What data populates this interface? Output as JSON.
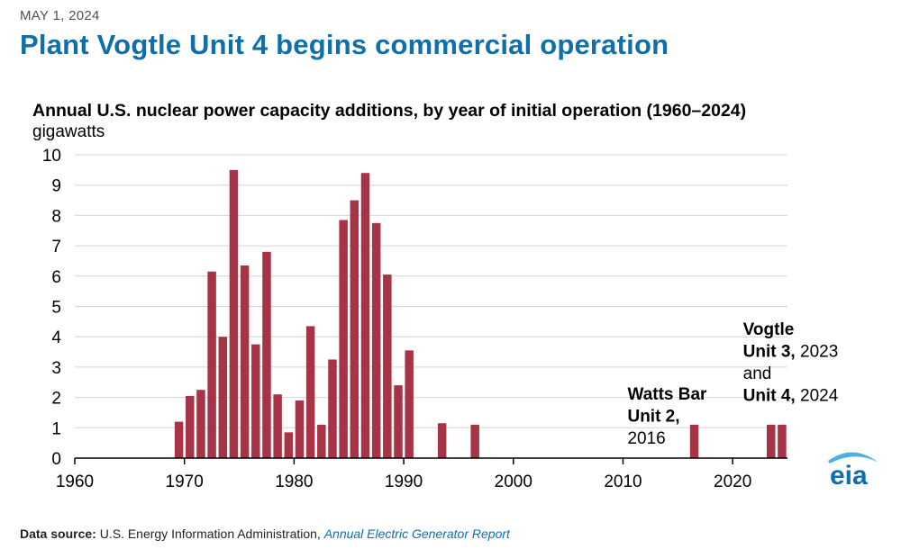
{
  "header": {
    "date": "MAY 1, 2024",
    "headline": "Plant Vogtle Unit 4 begins commercial operation"
  },
  "footer": {
    "source_label": "Data source:",
    "source_text": "U.S. Energy Information Administration,",
    "source_report": "Annual Electric Generator Report"
  },
  "logo": {
    "text": "eia",
    "icon": "eia-logo-icon",
    "color": "#0f6fa9",
    "swoosh_color": "#4ab3e6"
  },
  "colors": {
    "bar": "#a63446",
    "grid": "#d4d4d4",
    "axis": "#000000"
  },
  "chart_data": {
    "type": "bar",
    "title": "Annual U.S. nuclear power capacity additions, by year of initial operation (1960–2024)",
    "ylabel": "gigawatts",
    "xlabel": "",
    "xlim": [
      1960,
      2025
    ],
    "ylim": [
      0,
      10
    ],
    "x_ticks": [
      1960,
      1970,
      1980,
      1990,
      2000,
      2010,
      2020
    ],
    "y_ticks": [
      0,
      1,
      2,
      3,
      4,
      5,
      6,
      7,
      8,
      9,
      10
    ],
    "grid": "horizontal",
    "x": [
      1969,
      1970,
      1971,
      1972,
      1973,
      1974,
      1975,
      1976,
      1977,
      1978,
      1979,
      1980,
      1981,
      1982,
      1983,
      1984,
      1985,
      1986,
      1987,
      1988,
      1989,
      1990,
      1993,
      1996,
      2016,
      2023,
      2024
    ],
    "values": [
      1.2,
      2.05,
      2.25,
      6.15,
      4.0,
      9.5,
      6.35,
      3.75,
      6.8,
      2.1,
      0.85,
      1.9,
      4.35,
      1.1,
      3.25,
      7.85,
      8.5,
      9.4,
      7.75,
      6.05,
      2.4,
      3.55,
      1.15,
      1.1,
      1.1,
      1.1,
      1.1
    ],
    "annotations": [
      {
        "lines": [
          [
            {
              "text": "Watts Bar",
              "bold": true
            }
          ],
          [
            {
              "text": "Unit 2,",
              "bold": true
            }
          ],
          [
            {
              "text": "2016",
              "bold": false
            }
          ]
        ]
      },
      {
        "lines": [
          [
            {
              "text": "Vogtle",
              "bold": true
            }
          ],
          [
            {
              "text": "Unit 3,",
              "bold": true
            },
            {
              "text": " 2023",
              "bold": false
            }
          ],
          [
            {
              "text": "and",
              "bold": false
            }
          ],
          [
            {
              "text": "Unit 4,",
              "bold": true
            },
            {
              "text": " 2024",
              "bold": false
            }
          ]
        ]
      }
    ]
  }
}
